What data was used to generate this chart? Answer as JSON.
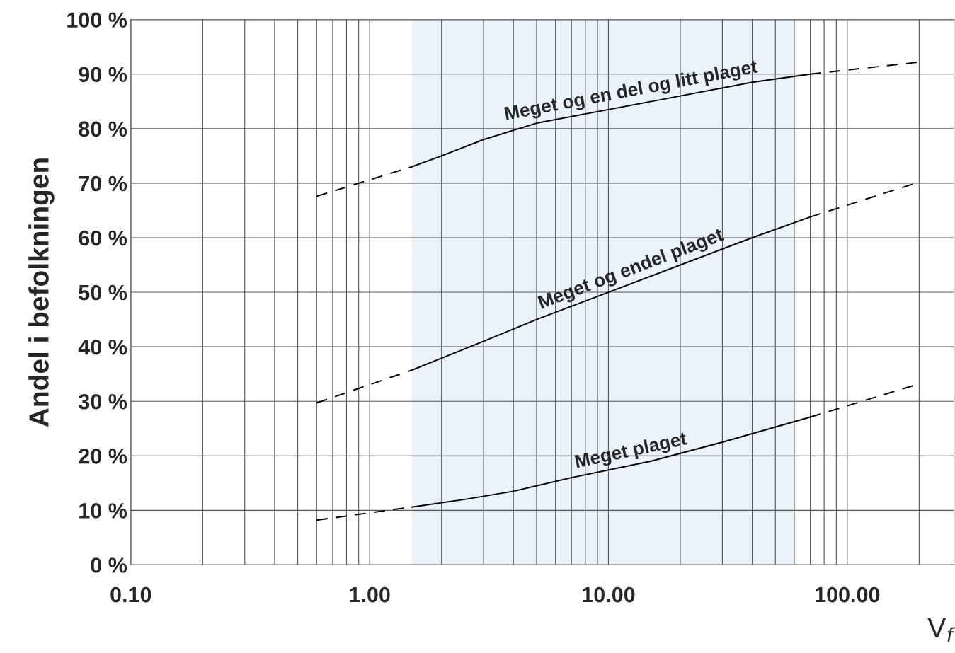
{
  "chart_data": {
    "type": "line",
    "ylabel": "Andel i befolkningen",
    "xlabel": "V$_{f}$",
    "log": "x",
    "grid": true,
    "legend": false,
    "xlim": [
      0.1,
      280
    ],
    "ylim": [
      0,
      100
    ],
    "xticks": [
      {
        "value": 0.1,
        "label": "0.10"
      },
      {
        "value": 0.2,
        "label": null
      },
      {
        "value": 0.3,
        "label": null
      },
      {
        "value": 0.4,
        "label": null
      },
      {
        "value": 0.5,
        "label": null
      },
      {
        "value": 0.6,
        "label": null
      },
      {
        "value": 0.7,
        "label": null
      },
      {
        "value": 0.8,
        "label": null
      },
      {
        "value": 0.9,
        "label": null
      },
      {
        "value": 1,
        "label": "1.00"
      },
      {
        "value": 2,
        "label": null
      },
      {
        "value": 3,
        "label": null
      },
      {
        "value": 4,
        "label": null
      },
      {
        "value": 5,
        "label": null
      },
      {
        "value": 6,
        "label": null
      },
      {
        "value": 7,
        "label": null
      },
      {
        "value": 8,
        "label": null
      },
      {
        "value": 9,
        "label": null
      },
      {
        "value": 10,
        "label": "10.00"
      },
      {
        "value": 20,
        "label": null
      },
      {
        "value": 30,
        "label": null
      },
      {
        "value": 40,
        "label": null
      },
      {
        "value": 50,
        "label": null
      },
      {
        "value": 60,
        "label": null
      },
      {
        "value": 70,
        "label": null
      },
      {
        "value": 80,
        "label": null
      },
      {
        "value": 90,
        "label": null
      },
      {
        "value": 100,
        "label": "100.00"
      },
      {
        "value": 200,
        "label": null
      }
    ],
    "yticks": [
      {
        "value": 0,
        "label": "0 %"
      },
      {
        "value": 10,
        "label": "10 %"
      },
      {
        "value": 20,
        "label": "20 %"
      },
      {
        "value": 30,
        "label": "30 %"
      },
      {
        "value": 40,
        "label": "40 %"
      },
      {
        "value": 50,
        "label": "50 %"
      },
      {
        "value": 60,
        "label": "60 %"
      },
      {
        "value": 70,
        "label": "70 %"
      },
      {
        "value": 80,
        "label": "80 %"
      },
      {
        "value": 90,
        "label": "90 %"
      },
      {
        "value": 100,
        "label": "100 %"
      }
    ],
    "bands": [
      {
        "axis": "x",
        "from": 1.5,
        "to": 60,
        "color": "#eaf2fa"
      }
    ],
    "series": [
      {
        "name": "Meget og en del og litt plaget",
        "color": "#000000",
        "line_style": "solid",
        "x": [
          1.5,
          2,
          3,
          5,
          10,
          20,
          40,
          70
        ],
        "values": [
          73,
          75,
          78,
          81,
          83.5,
          86,
          88.5,
          90
        ]
      },
      {
        "name": "Meget og endel plaget",
        "color": "#000000",
        "line_style": "solid",
        "x": [
          1.5,
          3,
          5,
          10,
          20,
          40,
          70
        ],
        "values": [
          35.7,
          41,
          45,
          50,
          55,
          60,
          63.8
        ]
      },
      {
        "name": "Meget plaget",
        "color": "#000000",
        "line_style": "solid",
        "x": [
          1.5,
          2.5,
          4,
          7,
          15,
          30,
          70
        ],
        "values": [
          10.6,
          12,
          13.5,
          16,
          19,
          22.5,
          27.1
        ]
      },
      {
        "color": "#000000",
        "line_style": "dashed",
        "x": [
          0.6,
          1.5,
          null,
          70,
          200
        ],
        "values": [
          67.6,
          73,
          null,
          90,
          92.2
        ]
      },
      {
        "color": "#000000",
        "line_style": "dashed",
        "x": [
          0.6,
          1.5,
          null,
          70,
          200
        ],
        "values": [
          29.7,
          35.7,
          null,
          63.8,
          70.2
        ]
      },
      {
        "color": "#000000",
        "line_style": "dashed",
        "x": [
          0.6,
          1.5,
          null,
          70,
          200
        ],
        "values": [
          8.2,
          10.6,
          null,
          27.1,
          33.2
        ]
      }
    ]
  }
}
